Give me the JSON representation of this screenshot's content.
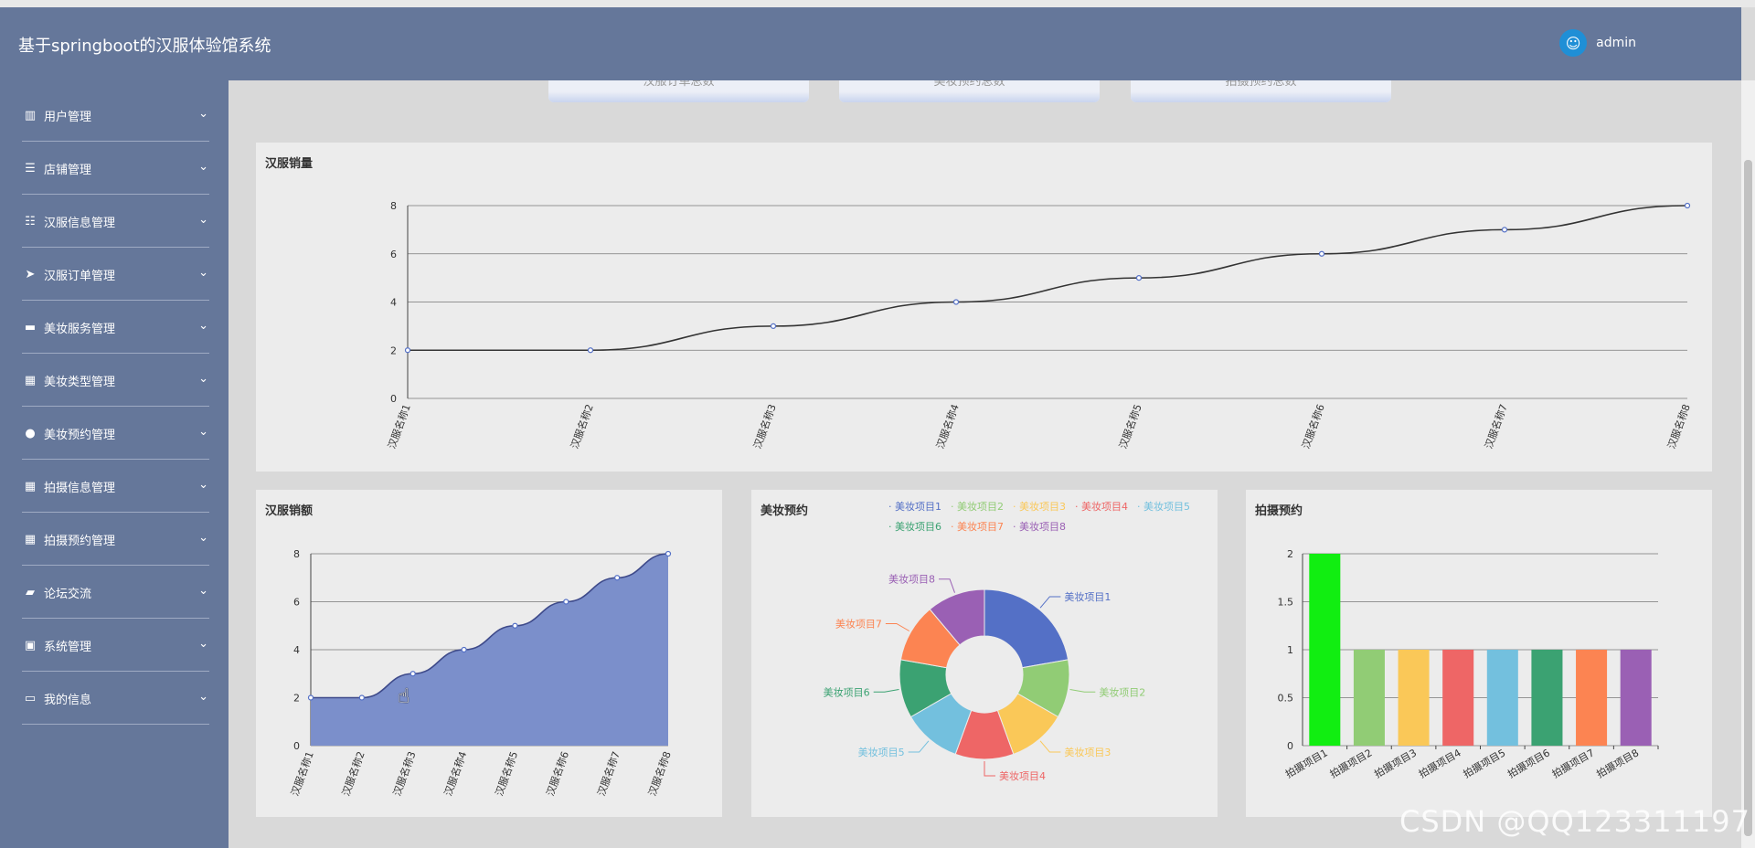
{
  "header": {
    "title": "基于springboot的汉服体验馆系统",
    "user": "admin"
  },
  "sidebar": {
    "items": [
      {
        "label": "用户管理",
        "icon": "users-icon",
        "glyph": "▥"
      },
      {
        "label": "店铺管理",
        "icon": "list-icon",
        "glyph": "☰"
      },
      {
        "label": "汉服信息管理",
        "icon": "sliders-icon",
        "glyph": "☷"
      },
      {
        "label": "汉服订单管理",
        "icon": "send-icon",
        "glyph": "➤"
      },
      {
        "label": "美妆服务管理",
        "icon": "ticket-icon",
        "glyph": "▬"
      },
      {
        "label": "美妆类型管理",
        "icon": "grid-icon",
        "glyph": "▦"
      },
      {
        "label": "美妆预约管理",
        "icon": "user-icon",
        "glyph": "●"
      },
      {
        "label": "拍摄信息管理",
        "icon": "grid-icon",
        "glyph": "▦"
      },
      {
        "label": "拍摄预约管理",
        "icon": "grid-icon",
        "glyph": "▦"
      },
      {
        "label": "论坛交流",
        "icon": "briefcase-icon",
        "glyph": "▰"
      },
      {
        "label": "系统管理",
        "icon": "chat-icon",
        "glyph": "▣"
      },
      {
        "label": "我的信息",
        "icon": "window-icon",
        "glyph": "▭"
      }
    ]
  },
  "stat_cards": [
    "汉服订单总数",
    "美妆预约总数",
    "拍摄预约总数"
  ],
  "colors": {
    "header": "#65779a",
    "line": "#5470c6",
    "area": "#7b8fcb"
  },
  "watermark": "CSDN @QQ123311197",
  "chart_data": [
    {
      "type": "line",
      "title": "汉服销量",
      "categories": [
        "汉服名称1",
        "汉服名称2",
        "汉服名称3",
        "汉服名称4",
        "汉服名称5",
        "汉服名称6",
        "汉服名称7",
        "汉服名称8"
      ],
      "values": [
        2,
        2,
        3,
        4,
        5,
        6,
        7,
        8
      ],
      "ylim": [
        0,
        8
      ],
      "yticks": [
        0,
        2,
        4,
        6,
        8
      ],
      "grid": true
    },
    {
      "type": "area",
      "title": "汉服销额",
      "categories": [
        "汉服名称1",
        "汉服名称2",
        "汉服名称3",
        "汉服名称4",
        "汉服名称5",
        "汉服名称6",
        "汉服名称7",
        "汉服名称8"
      ],
      "values": [
        2,
        2,
        3,
        4,
        5,
        6,
        7,
        8
      ],
      "ylim": [
        0,
        8
      ],
      "yticks": [
        0,
        2,
        4,
        6,
        8
      ],
      "grid": true
    },
    {
      "type": "pie",
      "title": "美妆预约",
      "legend_position": "top",
      "labels": [
        "美妆项目1",
        "美妆项目2",
        "美妆项目3",
        "美妆项目4",
        "美妆项目5",
        "美妆项目6",
        "美妆项目7",
        "美妆项目8"
      ],
      "values": [
        1.5,
        0.75,
        0.75,
        0.75,
        0.75,
        0.75,
        0.75,
        0.75
      ],
      "colors": [
        "#5470c6",
        "#91cc75",
        "#fac858",
        "#ee6666",
        "#73c0de",
        "#3ba272",
        "#fc8452",
        "#9a60b4"
      ]
    },
    {
      "type": "bar",
      "title": "拍摄预约",
      "categories": [
        "拍摄项目1",
        "拍摄项目2",
        "拍摄项目3",
        "拍摄项目4",
        "拍摄项目5",
        "拍摄项目6",
        "拍摄项目7",
        "拍摄项目8"
      ],
      "values": [
        2,
        1,
        1,
        1,
        1,
        1,
        1,
        1
      ],
      "ylim": [
        0,
        2
      ],
      "yticks": [
        "0",
        "0.5",
        "1",
        "1.5",
        "2"
      ],
      "colors": [
        "#11ee11",
        "#91cc75",
        "#fac858",
        "#ee6666",
        "#73c0de",
        "#3ba272",
        "#fc8452",
        "#9a60b4"
      ],
      "grid": true
    }
  ]
}
